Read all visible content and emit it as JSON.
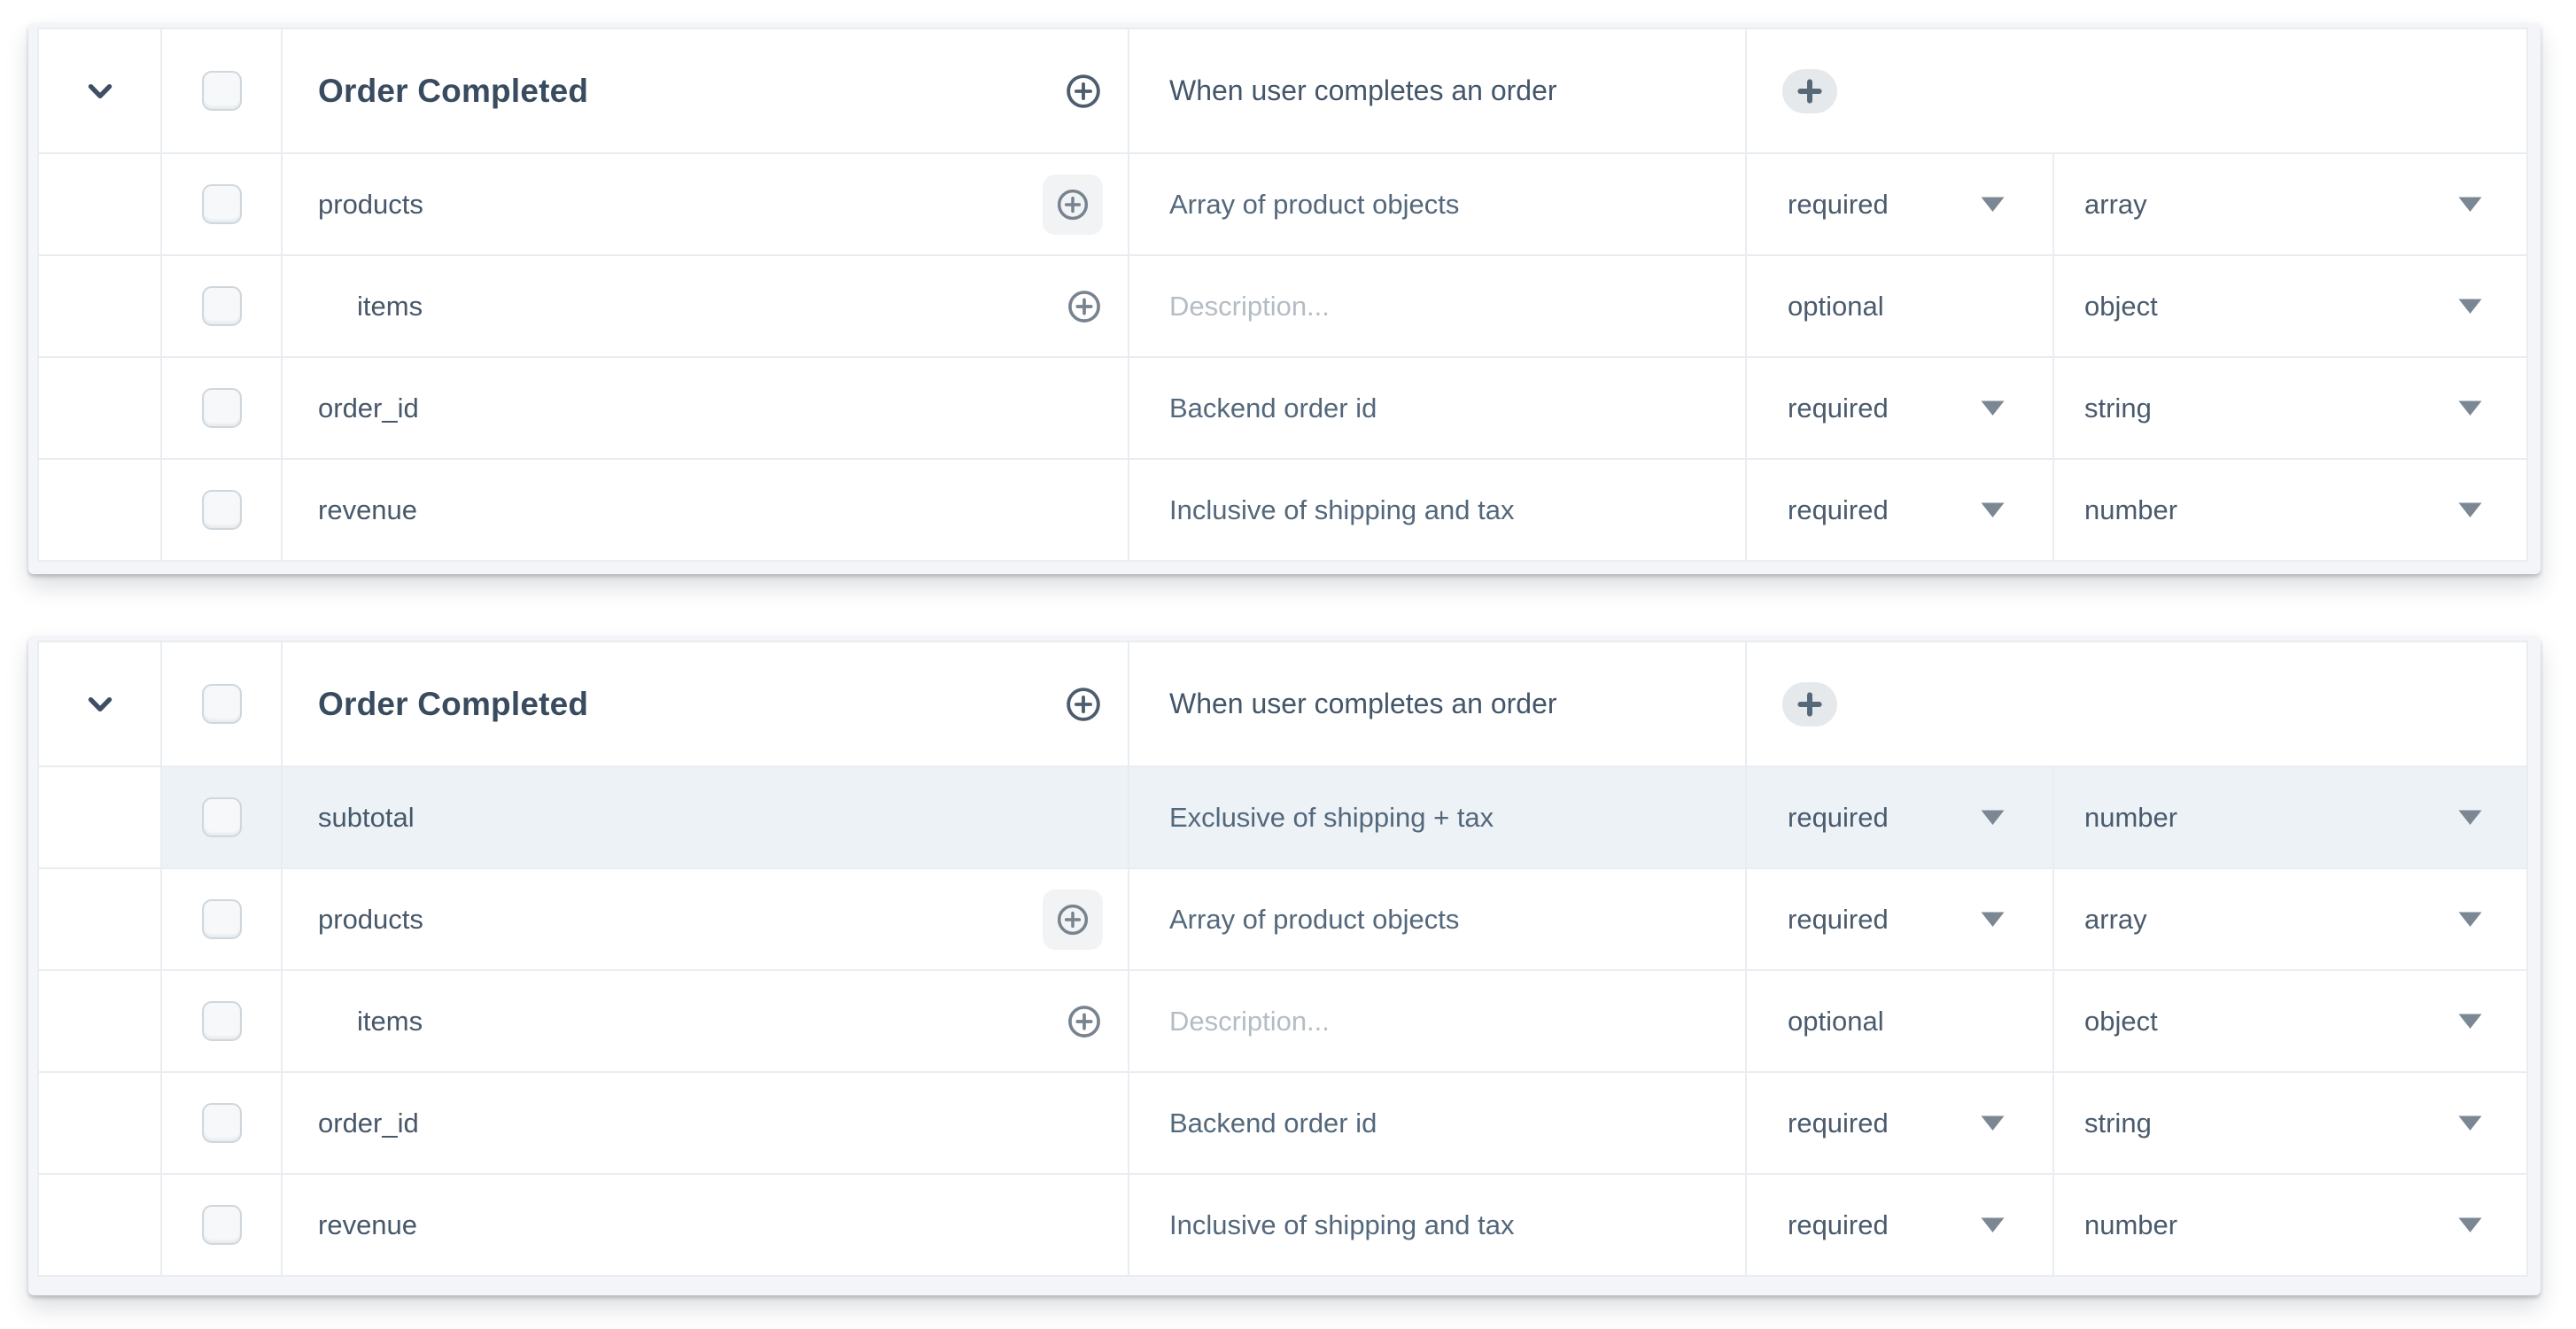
{
  "colors": {
    "grid_line": "#e9edf1",
    "title_text": "#394b5f",
    "name_text": "#47586a",
    "description_text": "#54687c",
    "placeholder_text": "#b4bcc4",
    "dropdown_text": "#4a5b6d",
    "caret": "#7b8894",
    "chevron": "#3e4f63",
    "header_plus_icon": "#4d5d6e",
    "row_plus_icon": "#77838f",
    "plus_badge_bg": "#e6e9ec",
    "plus_badge_glyph": "#576878",
    "highlight_row_bg": "#edf2f7",
    "card_strip_bg": "#f3f5f8",
    "checkbox_border": "#cfd7dd",
    "checkbox_bg": "#f6f8fa"
  },
  "icons": {
    "expander": "chevron-down-icon",
    "add_property": "circle-plus-icon",
    "dropdown": "caret-down-icon",
    "badge": "plus-icon"
  },
  "panels": [
    {
      "header": {
        "title": "Order Completed",
        "description": "When user completes an order"
      },
      "rows": [
        {
          "name": "products",
          "description": "Array of product objects",
          "required": "required",
          "type": "array",
          "indent": 0,
          "add_icon": "boxed",
          "required_caret": true,
          "placeholder": false,
          "highlighted": false
        },
        {
          "name": "items",
          "description": "Description...",
          "required": "optional",
          "type": "object",
          "indent": 1,
          "add_icon": "plain",
          "required_caret": false,
          "placeholder": true,
          "highlighted": false
        },
        {
          "name": "order_id",
          "description": "Backend order id",
          "required": "required",
          "type": "string",
          "indent": 0,
          "add_icon": null,
          "required_caret": true,
          "placeholder": false,
          "highlighted": false
        },
        {
          "name": "revenue",
          "description": "Inclusive of shipping and tax",
          "required": "required",
          "type": "number",
          "indent": 0,
          "add_icon": null,
          "required_caret": true,
          "placeholder": false,
          "highlighted": false
        }
      ]
    },
    {
      "header": {
        "title": "Order Completed",
        "description": "When user completes an order"
      },
      "rows": [
        {
          "name": "subtotal",
          "description": "Exclusive of shipping + tax",
          "required": "required",
          "type": "number",
          "indent": 0,
          "add_icon": null,
          "required_caret": true,
          "placeholder": false,
          "highlighted": true
        },
        {
          "name": "products",
          "description": "Array of product objects",
          "required": "required",
          "type": "array",
          "indent": 0,
          "add_icon": "boxed",
          "required_caret": true,
          "placeholder": false,
          "highlighted": false
        },
        {
          "name": "items",
          "description": "Description...",
          "required": "optional",
          "type": "object",
          "indent": 1,
          "add_icon": "plain",
          "required_caret": false,
          "placeholder": true,
          "highlighted": false
        },
        {
          "name": "order_id",
          "description": "Backend order id",
          "required": "required",
          "type": "string",
          "indent": 0,
          "add_icon": null,
          "required_caret": true,
          "placeholder": false,
          "highlighted": false
        },
        {
          "name": "revenue",
          "description": "Inclusive of shipping and tax",
          "required": "required",
          "type": "number",
          "indent": 0,
          "add_icon": null,
          "required_caret": true,
          "placeholder": false,
          "highlighted": false
        }
      ]
    }
  ]
}
